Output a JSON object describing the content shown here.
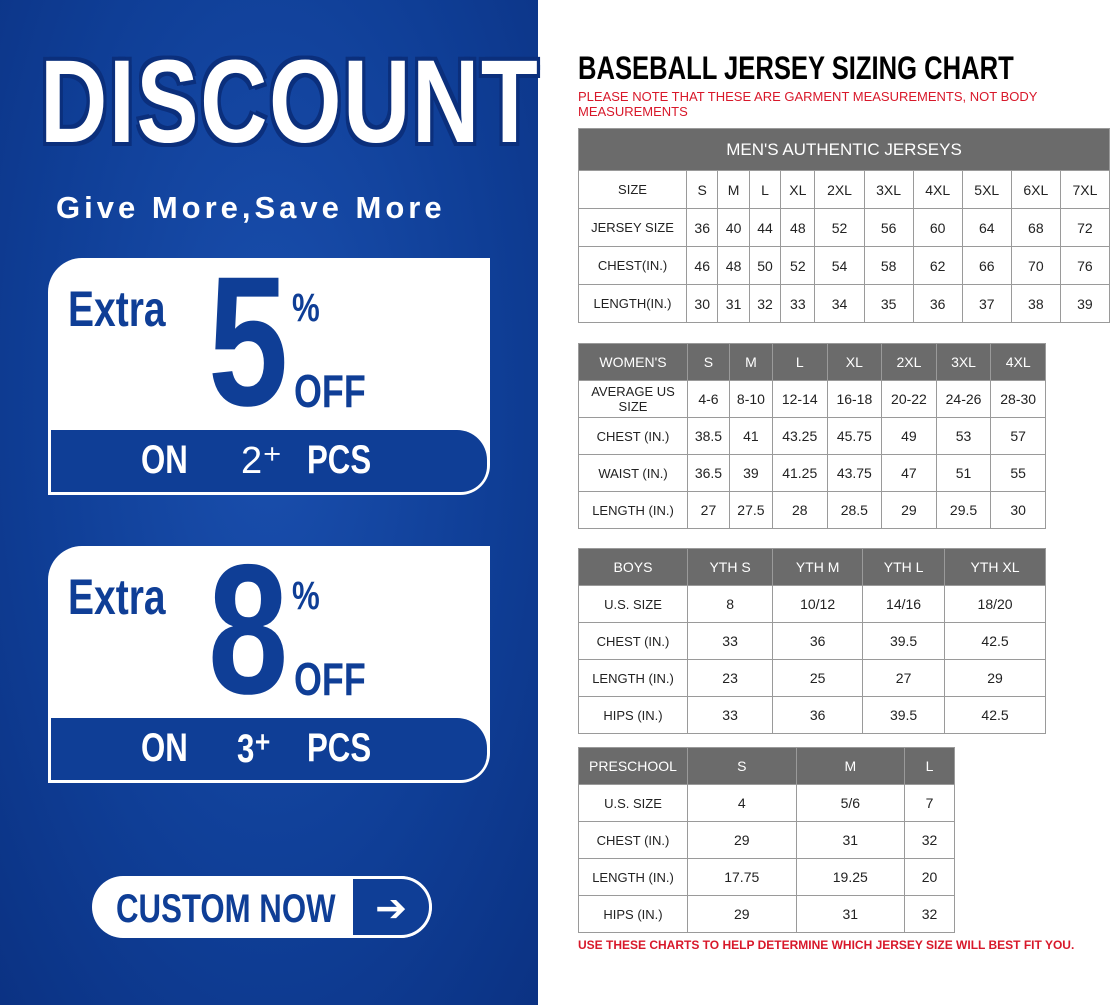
{
  "promo": {
    "headline": "DISCOUNT",
    "slogan": "Give More,Save More",
    "coupons": [
      {
        "extra": "Extra",
        "value": "5",
        "percent": "%",
        "off": "OFF",
        "on": "ON",
        "qty": "2⁺",
        "pcs": "PCS"
      },
      {
        "extra": "Extra",
        "value": "8",
        "percent": "%",
        "off": "OFF",
        "on": "ON",
        "qty": "3⁺",
        "pcs": "PCS"
      }
    ],
    "cta_label": "CUSTOM NOW",
    "cta_icon": "arrow-right-icon",
    "colors": {
      "brand_blue": "#0f3e96",
      "header_gray": "#6b6b6b",
      "note_red": "#d8182a"
    }
  },
  "chart": {
    "title": "BASEBALL JERSEY SIZING CHART",
    "note": "PLEASE NOTE THAT THESE ARE GARMENT MEASUREMENTS, NOT BODY MEASUREMENTS",
    "footer": "USE THESE CHARTS TO HELP DETERMINE WHICH JERSEY SIZE WILL BEST FIT YOU.",
    "tables": [
      {
        "name": "mens",
        "banner": "MEN'S AUTHENTIC JERSEYS",
        "rows": [
          [
            "SIZE",
            "S",
            "M",
            "L",
            "XL",
            "2XL",
            "3XL",
            "4XL",
            "5XL",
            "6XL",
            "7XL"
          ],
          [
            "JERSEY SIZE",
            "36",
            "40",
            "44",
            "48",
            "52",
            "56",
            "60",
            "64",
            "68",
            "72"
          ],
          [
            "CHEST(IN.)",
            "46",
            "48",
            "50",
            "52",
            "54",
            "58",
            "62",
            "66",
            "70",
            "76"
          ],
          [
            "LENGTH(IN.)",
            "30",
            "31",
            "32",
            "33",
            "34",
            "35",
            "36",
            "37",
            "38",
            "39"
          ]
        ]
      },
      {
        "name": "womens",
        "header": [
          "WOMEN'S",
          "S",
          "M",
          "L",
          "XL",
          "2XL",
          "3XL",
          "4XL"
        ],
        "rows": [
          [
            "AVERAGE US SIZE",
            "4-6",
            "8-10",
            "12-14",
            "16-18",
            "20-22",
            "24-26",
            "28-30"
          ],
          [
            "CHEST (IN.)",
            "38.5",
            "41",
            "43.25",
            "45.75",
            "49",
            "53",
            "57"
          ],
          [
            "WAIST (IN.)",
            "36.5",
            "39",
            "41.25",
            "43.75",
            "47",
            "51",
            "55"
          ],
          [
            "LENGTH (IN.)",
            "27",
            "27.5",
            "28",
            "28.5",
            "29",
            "29.5",
            "30"
          ]
        ]
      },
      {
        "name": "boys",
        "header": [
          "BOYS",
          "YTH S",
          "YTH M",
          "YTH L",
          "YTH XL"
        ],
        "rows": [
          [
            "U.S. SIZE",
            "8",
            "10/12",
            "14/16",
            "18/20"
          ],
          [
            "CHEST (IN.)",
            "33",
            "36",
            "39.5",
            "42.5"
          ],
          [
            "LENGTH (IN.)",
            "23",
            "25",
            "27",
            "29"
          ],
          [
            "HIPS (IN.)",
            "33",
            "36",
            "39.5",
            "42.5"
          ]
        ]
      },
      {
        "name": "preschool",
        "header": [
          "PRESCHOOL",
          "S",
          "M",
          "L"
        ],
        "rows": [
          [
            "U.S. SIZE",
            "4",
            "5/6",
            "7"
          ],
          [
            "CHEST (IN.)",
            "29",
            "31",
            "32"
          ],
          [
            "LENGTH (IN.)",
            "17.75",
            "19.25",
            "20"
          ],
          [
            "HIPS (IN.)",
            "29",
            "31",
            "32"
          ]
        ]
      }
    ]
  }
}
